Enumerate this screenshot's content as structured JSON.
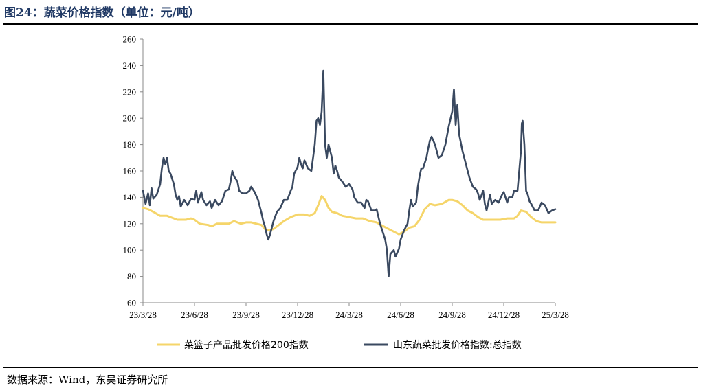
{
  "title": "图24：蔬菜价格指数（单位：元/吨）",
  "source": "数据来源：Wind，东吴证券研究所",
  "colors": {
    "basket": "#F5D56A",
    "shandong": "#3A4960",
    "title": "#1f3864"
  },
  "chart_data": {
    "type": "line",
    "title": "蔬菜价格指数",
    "xlabel": "",
    "ylabel": "",
    "ylim": [
      60,
      260
    ],
    "yticks": [
      60,
      80,
      100,
      120,
      140,
      160,
      180,
      200,
      220,
      240,
      260
    ],
    "xlim": [
      0,
      24
    ],
    "x_unit": "months since 23/3/28",
    "xticks": [
      {
        "x": 0,
        "label": "23/3/28"
      },
      {
        "x": 3,
        "label": "23/6/28"
      },
      {
        "x": 6,
        "label": "23/9/28"
      },
      {
        "x": 9,
        "label": "23/12/28"
      },
      {
        "x": 12,
        "label": "24/3/28"
      },
      {
        "x": 15,
        "label": "24/6/28"
      },
      {
        "x": 18,
        "label": "24/9/28"
      },
      {
        "x": 21,
        "label": "24/12/28"
      },
      {
        "x": 24,
        "label": "25/3/28"
      }
    ],
    "legend_position": "bottom",
    "series": [
      {
        "name": "菜篮子产品批发价格200指数",
        "color": "#F5D56A",
        "points": [
          [
            0,
            132
          ],
          [
            0.3,
            131
          ],
          [
            0.6,
            129
          ],
          [
            1,
            126
          ],
          [
            1.4,
            126
          ],
          [
            1.8,
            124
          ],
          [
            2,
            123
          ],
          [
            2.5,
            123
          ],
          [
            2.8,
            124
          ],
          [
            3,
            123
          ],
          [
            3.3,
            120
          ],
          [
            3.8,
            119
          ],
          [
            4,
            118
          ],
          [
            4.3,
            120
          ],
          [
            4.7,
            120
          ],
          [
            5,
            120
          ],
          [
            5.3,
            122
          ],
          [
            5.7,
            120
          ],
          [
            6,
            121
          ],
          [
            6.3,
            121
          ],
          [
            6.6,
            120
          ],
          [
            6.9,
            119
          ],
          [
            7.1,
            116
          ],
          [
            7.3,
            115
          ],
          [
            7.6,
            116
          ],
          [
            7.9,
            119
          ],
          [
            8.2,
            122
          ],
          [
            8.6,
            125
          ],
          [
            9,
            127
          ],
          [
            9.4,
            127
          ],
          [
            9.7,
            126
          ],
          [
            10,
            128
          ],
          [
            10.2,
            134
          ],
          [
            10.4,
            141
          ],
          [
            10.6,
            138
          ],
          [
            10.8,
            132
          ],
          [
            11,
            129
          ],
          [
            11.3,
            128
          ],
          [
            11.6,
            126
          ],
          [
            12,
            125
          ],
          [
            12.4,
            124
          ],
          [
            12.8,
            124
          ],
          [
            13.2,
            122
          ],
          [
            13.6,
            121
          ],
          [
            14,
            118
          ],
          [
            14.3,
            116
          ],
          [
            14.6,
            114
          ],
          [
            14.9,
            112
          ],
          [
            15.2,
            114
          ],
          [
            15.5,
            117
          ],
          [
            15.8,
            118
          ],
          [
            16.1,
            123
          ],
          [
            16.4,
            131
          ],
          [
            16.7,
            135
          ],
          [
            17,
            134
          ],
          [
            17.4,
            135
          ],
          [
            17.8,
            138
          ],
          [
            18,
            138
          ],
          [
            18.3,
            137
          ],
          [
            18.6,
            134
          ],
          [
            18.9,
            130
          ],
          [
            19.2,
            128
          ],
          [
            19.5,
            125
          ],
          [
            19.8,
            123
          ],
          [
            20.1,
            123
          ],
          [
            20.5,
            123
          ],
          [
            20.8,
            123
          ],
          [
            21.2,
            124
          ],
          [
            21.6,
            124
          ],
          [
            21.8,
            126
          ],
          [
            22,
            130
          ],
          [
            22.3,
            129
          ],
          [
            22.6,
            125
          ],
          [
            22.9,
            122
          ],
          [
            23.2,
            121
          ],
          [
            23.6,
            121
          ],
          [
            24,
            121
          ]
        ]
      },
      {
        "name": "山东蔬菜批发价格指数:总指数",
        "color": "#3A4960",
        "points": [
          [
            0,
            145
          ],
          [
            0.15,
            135
          ],
          [
            0.3,
            143
          ],
          [
            0.4,
            134
          ],
          [
            0.5,
            147
          ],
          [
            0.6,
            139
          ],
          [
            0.8,
            142
          ],
          [
            1,
            150
          ],
          [
            1.1,
            162
          ],
          [
            1.2,
            170
          ],
          [
            1.3,
            165
          ],
          [
            1.4,
            170
          ],
          [
            1.5,
            160
          ],
          [
            1.6,
            158
          ],
          [
            1.8,
            150
          ],
          [
            1.9,
            142
          ],
          [
            2,
            138
          ],
          [
            2.1,
            141
          ],
          [
            2.2,
            133
          ],
          [
            2.4,
            138
          ],
          [
            2.6,
            134
          ],
          [
            2.8,
            139
          ],
          [
            3,
            138
          ],
          [
            3.1,
            145
          ],
          [
            3.2,
            136
          ],
          [
            3.4,
            144
          ],
          [
            3.5,
            138
          ],
          [
            3.7,
            134
          ],
          [
            3.9,
            137
          ],
          [
            4,
            132
          ],
          [
            4.2,
            138
          ],
          [
            4.4,
            134
          ],
          [
            4.6,
            137
          ],
          [
            4.8,
            145
          ],
          [
            5,
            146
          ],
          [
            5.1,
            152
          ],
          [
            5.2,
            160
          ],
          [
            5.3,
            156
          ],
          [
            5.5,
            152
          ],
          [
            5.6,
            145
          ],
          [
            5.8,
            143
          ],
          [
            6,
            143
          ],
          [
            6.2,
            145
          ],
          [
            6.3,
            148
          ],
          [
            6.5,
            144
          ],
          [
            6.7,
            138
          ],
          [
            6.9,
            128
          ],
          [
            7,
            122
          ],
          [
            7.1,
            118
          ],
          [
            7.2,
            112
          ],
          [
            7.3,
            108
          ],
          [
            7.4,
            112
          ],
          [
            7.6,
            122
          ],
          [
            7.8,
            129
          ],
          [
            8,
            132
          ],
          [
            8.2,
            138
          ],
          [
            8.4,
            138
          ],
          [
            8.6,
            145
          ],
          [
            8.7,
            148
          ],
          [
            8.8,
            158
          ],
          [
            9,
            163
          ],
          [
            9.1,
            170
          ],
          [
            9.2,
            165
          ],
          [
            9.3,
            162
          ],
          [
            9.4,
            168
          ],
          [
            9.6,
            162
          ],
          [
            9.8,
            160
          ],
          [
            10,
            180
          ],
          [
            10.1,
            198
          ],
          [
            10.2,
            200
          ],
          [
            10.3,
            195
          ],
          [
            10.4,
            205
          ],
          [
            10.5,
            236
          ],
          [
            10.6,
            180
          ],
          [
            10.7,
            170
          ],
          [
            10.8,
            180
          ],
          [
            11,
            170
          ],
          [
            11.1,
            158
          ],
          [
            11.2,
            164
          ],
          [
            11.3,
            160
          ],
          [
            11.4,
            155
          ],
          [
            11.6,
            152
          ],
          [
            11.8,
            148
          ],
          [
            12,
            150
          ],
          [
            12.2,
            146
          ],
          [
            12.3,
            140
          ],
          [
            12.5,
            136
          ],
          [
            12.7,
            136
          ],
          [
            12.9,
            132
          ],
          [
            13,
            138
          ],
          [
            13.1,
            137
          ],
          [
            13.3,
            130
          ],
          [
            13.5,
            130
          ],
          [
            13.6,
            131
          ],
          [
            13.8,
            120
          ],
          [
            14,
            112
          ],
          [
            14.1,
            108
          ],
          [
            14.2,
            100
          ],
          [
            14.3,
            80
          ],
          [
            14.4,
            97
          ],
          [
            14.6,
            100
          ],
          [
            14.7,
            95
          ],
          [
            14.9,
            101
          ],
          [
            15,
            108
          ],
          [
            15.2,
            115
          ],
          [
            15.4,
            120
          ],
          [
            15.5,
            130
          ],
          [
            15.6,
            138
          ],
          [
            15.7,
            133
          ],
          [
            15.9,
            136
          ],
          [
            16,
            148
          ],
          [
            16.1,
            156
          ],
          [
            16.2,
            162
          ],
          [
            16.3,
            162
          ],
          [
            16.5,
            170
          ],
          [
            16.6,
            177
          ],
          [
            16.7,
            183
          ],
          [
            16.8,
            186
          ],
          [
            17,
            180
          ],
          [
            17.2,
            170
          ],
          [
            17.4,
            172
          ],
          [
            17.6,
            180
          ],
          [
            17.8,
            194
          ],
          [
            18,
            205
          ],
          [
            18.1,
            222
          ],
          [
            18.2,
            195
          ],
          [
            18.3,
            210
          ],
          [
            18.4,
            188
          ],
          [
            18.6,
            175
          ],
          [
            18.7,
            170
          ],
          [
            18.8,
            165
          ],
          [
            19,
            155
          ],
          [
            19.2,
            148
          ],
          [
            19.4,
            146
          ],
          [
            19.5,
            143
          ],
          [
            19.6,
            138
          ],
          [
            19.8,
            145
          ],
          [
            19.9,
            135
          ],
          [
            20,
            130
          ],
          [
            20.2,
            142
          ],
          [
            20.3,
            135
          ],
          [
            20.5,
            138
          ],
          [
            20.7,
            136
          ],
          [
            20.9,
            142
          ],
          [
            21,
            144
          ],
          [
            21.2,
            136
          ],
          [
            21.3,
            140
          ],
          [
            21.5,
            140
          ],
          [
            21.6,
            145
          ],
          [
            21.8,
            145
          ],
          [
            22,
            175
          ],
          [
            22.05,
            196
          ],
          [
            22.1,
            198
          ],
          [
            22.2,
            180
          ],
          [
            22.3,
            145
          ],
          [
            22.4,
            142
          ],
          [
            22.5,
            137
          ],
          [
            22.6,
            135
          ],
          [
            22.8,
            130
          ],
          [
            23,
            130
          ],
          [
            23.2,
            136
          ],
          [
            23.4,
            134
          ],
          [
            23.6,
            128
          ],
          [
            23.8,
            130
          ],
          [
            24,
            131
          ]
        ]
      }
    ]
  }
}
